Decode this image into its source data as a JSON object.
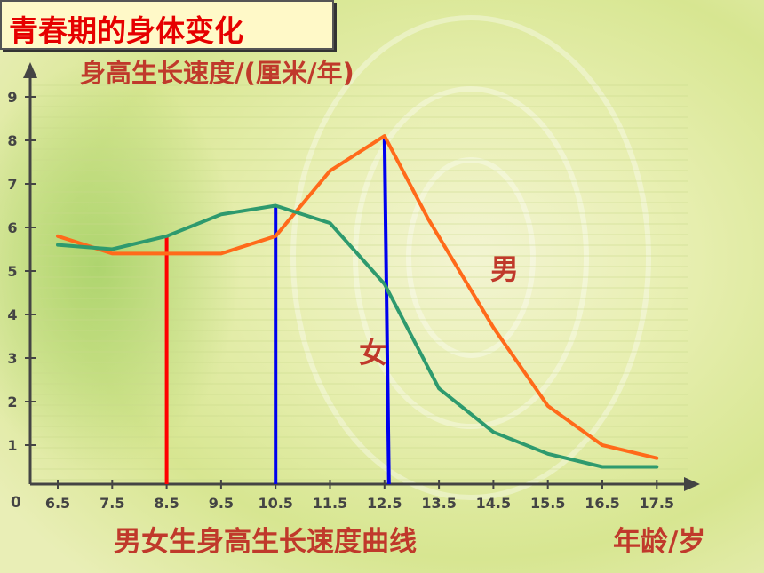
{
  "slide": {
    "title": "青春期的身体变化"
  },
  "chart_data": {
    "type": "line",
    "title": "男女生身高生长速度曲线",
    "ylabel": "身高生长速度/(厘米/年)",
    "xlabel": "年龄/岁",
    "origin_label": "0",
    "x": [
      6.5,
      7.5,
      8.5,
      9.5,
      10.5,
      11.5,
      12.5,
      13.5,
      14.5,
      15.5,
      16.5,
      17.5
    ],
    "xticklabels": [
      "6.5",
      "7.5",
      "8.5",
      "9.5",
      "10.5",
      "11.5",
      "12.5",
      "13.5",
      "14.5",
      "15.5",
      "16.5",
      "17.5"
    ],
    "yticks": [
      1,
      2,
      3,
      4,
      5,
      6,
      7,
      8,
      9
    ],
    "ylim": [
      0,
      9.5
    ],
    "series": [
      {
        "name": "男",
        "color": "#ff6a1a",
        "x": [
          6.5,
          7.5,
          8.5,
          9.5,
          10.5,
          11.5,
          12.5,
          13.3,
          14.5,
          15.5,
          16.5,
          17.5
        ],
        "values": [
          5.8,
          5.4,
          5.4,
          5.4,
          5.8,
          7.3,
          8.1,
          6.2,
          3.7,
          1.9,
          1.0,
          0.7
        ]
      },
      {
        "name": "女",
        "color": "#2e9a6e",
        "x": [
          6.5,
          7.5,
          8.5,
          9.5,
          10.5,
          11.5,
          12.5,
          13.5,
          14.5,
          15.5,
          16.5,
          17.5
        ],
        "values": [
          5.6,
          5.5,
          5.8,
          6.3,
          6.5,
          6.1,
          4.7,
          2.3,
          1.3,
          0.8,
          0.5,
          0.5
        ]
      }
    ],
    "markers": [
      {
        "x": 8.5,
        "y": 5.8,
        "color": "#ff0000"
      },
      {
        "x": 10.5,
        "y": 6.5,
        "color": "#0000ee"
      },
      {
        "x": 12.5,
        "y": 8.1,
        "color": "#0000ee"
      }
    ],
    "colors": {
      "text": "#c0392b",
      "axis": "#444444"
    }
  }
}
